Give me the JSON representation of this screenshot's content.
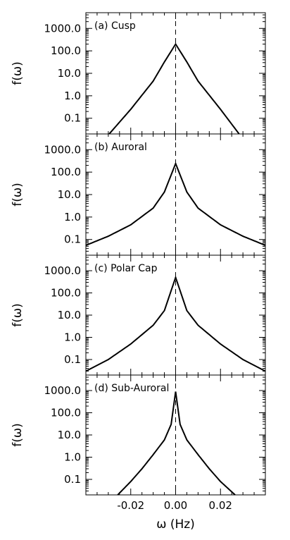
{
  "chart_data": [
    {
      "type": "line",
      "panel_label": "(a) Cusp",
      "ylabel": "f(ω)",
      "yscale": "log",
      "ylim": [
        0.02,
        5000
      ],
      "xlim": [
        -0.04,
        0.04
      ],
      "yticks": [
        "1000.0",
        "100.0",
        "10.0",
        "1.0",
        "0.1"
      ],
      "peak_value": 200,
      "x": [
        -0.0296,
        -0.02,
        -0.01,
        -0.005,
        0.0,
        0.005,
        0.01,
        0.02,
        0.0283
      ],
      "y": [
        0.02,
        0.25,
        4.5,
        32,
        200,
        32,
        4.5,
        0.25,
        0.02
      ],
      "vertical_line": {
        "x": 0.0,
        "style": "dashed"
      }
    },
    {
      "type": "line",
      "panel_label": "(b) Auroral",
      "ylabel": "f(ω)",
      "yscale": "log",
      "ylim": [
        0.02,
        5000
      ],
      "xlim": [
        -0.04,
        0.04
      ],
      "yticks": [
        "1000.0",
        "100.0",
        "10.0",
        "1.0",
        "0.1"
      ],
      "peak_value": 240,
      "x": [
        -0.04,
        -0.03,
        -0.02,
        -0.01,
        -0.005,
        0.0,
        0.005,
        0.01,
        0.02,
        0.03,
        0.04
      ],
      "y": [
        0.055,
        0.14,
        0.45,
        2.5,
        13,
        240,
        13,
        2.5,
        0.45,
        0.14,
        0.055
      ],
      "vertical_line": {
        "x": 0.0,
        "style": "dashed"
      }
    },
    {
      "type": "line",
      "panel_label": "(c) Polar Cap",
      "ylabel": "f(ω)",
      "yscale": "log",
      "ylim": [
        0.02,
        5000
      ],
      "xlim": [
        -0.04,
        0.04
      ],
      "yticks": [
        "1000.0",
        "100.0",
        "10.0",
        "1.0",
        "0.1"
      ],
      "peak_value": 500,
      "x": [
        -0.04,
        -0.03,
        -0.02,
        -0.01,
        -0.005,
        0.0,
        0.005,
        0.01,
        0.02,
        0.03,
        0.04
      ],
      "y": [
        0.03,
        0.1,
        0.5,
        3.5,
        16,
        500,
        16,
        3.5,
        0.5,
        0.1,
        0.03
      ],
      "vertical_line": {
        "x": 0.0,
        "style": "dashed"
      }
    },
    {
      "type": "line",
      "panel_label": "(d) Sub-Auroral",
      "ylabel": "f(ω)",
      "xlabel": "ω (Hz)",
      "yscale": "log",
      "ylim": [
        0.02,
        5000
      ],
      "xlim": [
        -0.04,
        0.04
      ],
      "xticks": [
        -0.02,
        0.0,
        0.02
      ],
      "xtick_labels": [
        "-0.02",
        "0.00",
        "0.02"
      ],
      "yticks": [
        "1000.0",
        "100.0",
        "10.0",
        "1.0",
        "0.1"
      ],
      "peak_value": 900,
      "x": [
        -0.0258,
        -0.02,
        -0.015,
        -0.01,
        -0.005,
        -0.002,
        0.0,
        0.002,
        0.005,
        0.01,
        0.015,
        0.02,
        0.0265
      ],
      "y": [
        0.02,
        0.08,
        0.3,
        1.3,
        6,
        30,
        900,
        30,
        6,
        1.3,
        0.3,
        0.08,
        0.02
      ],
      "vertical_line": {
        "x": 0.0,
        "style": "dashed"
      }
    }
  ]
}
